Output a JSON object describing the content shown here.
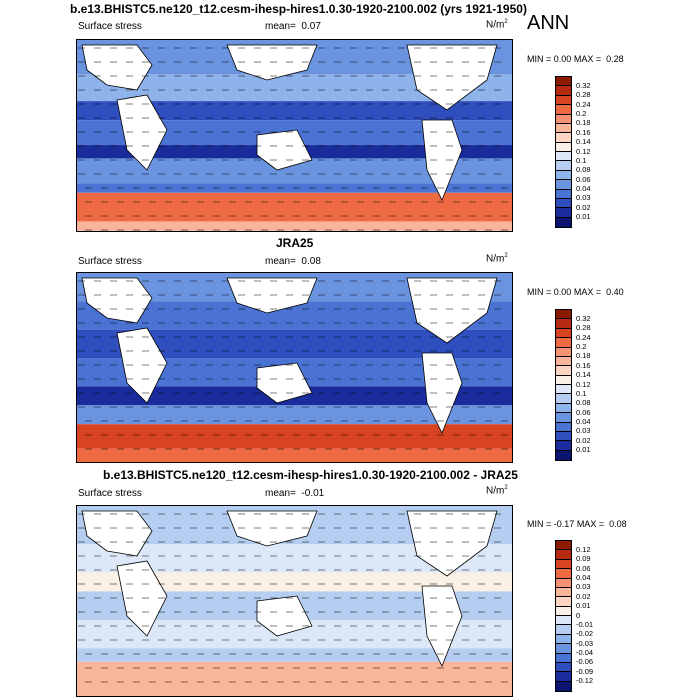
{
  "season": "ANN",
  "chart_data": [
    {
      "type": "heatmap",
      "title": "b.e13.BHISTC5.ne120_t12.cesm-ihesp-hires1.0.30-1920-2100.002 (yrs 1921-1950)",
      "left_label": "Surface stress",
      "mean_label": "mean=",
      "mean": "0.07",
      "units": "N/m",
      "units_sup": "2",
      "min_label": "MIN =",
      "min": "0.00",
      "max_label": "MAX =",
      "max": "0.28",
      "colorbar_levels": [
        "0.32",
        "0.28",
        "0.24",
        "0.2",
        "0.18",
        "0.16",
        "0.14",
        "0.12",
        "0.1",
        "0.08",
        "0.06",
        "0.04",
        "0.03",
        "0.02",
        "0.01"
      ],
      "colorbar_colors": [
        "#8b1a00",
        "#b52a10",
        "#d84422",
        "#ee6a43",
        "#f59272",
        "#f8b59a",
        "#fbd5c2",
        "#faf0e6",
        "#dce8f7",
        "#b4cdf0",
        "#8eb2ea",
        "#6a93e0",
        "#4a73d4",
        "#2f4fbf",
        "#1a2c9c",
        "#0c1470"
      ]
    },
    {
      "type": "heatmap",
      "title": "JRA25",
      "left_label": "Surface stress",
      "mean_label": "mean=",
      "mean": "0.08",
      "units": "N/m",
      "units_sup": "2",
      "min_label": "MIN =",
      "min": "0.00",
      "max_label": "MAX =",
      "max": "0.40",
      "colorbar_levels": [
        "0.32",
        "0.28",
        "0.24",
        "0.2",
        "0.18",
        "0.16",
        "0.14",
        "0.12",
        "0.1",
        "0.08",
        "0.06",
        "0.04",
        "0.03",
        "0.02",
        "0.01"
      ],
      "colorbar_colors": [
        "#8b1a00",
        "#b52a10",
        "#d84422",
        "#ee6a43",
        "#f59272",
        "#f8b59a",
        "#fbd5c2",
        "#faf0e6",
        "#dce8f7",
        "#b4cdf0",
        "#8eb2ea",
        "#6a93e0",
        "#4a73d4",
        "#2f4fbf",
        "#1a2c9c",
        "#0c1470"
      ]
    },
    {
      "type": "heatmap",
      "title": "b.e13.BHISTC5.ne120_t12.cesm-ihesp-hires1.0.30-1920-2100.002 - JRA25",
      "left_label": "Surface stress",
      "mean_label": "mean=",
      "mean": "-0.01",
      "units": "N/m",
      "units_sup": "2",
      "min_label": "MIN =",
      "min": "-0.17",
      "max_label": "MAX =",
      "max": "0.08",
      "colorbar_levels": [
        "0.12",
        "0.09",
        "0.06",
        "0.04",
        "0.03",
        "0.02",
        "0.01",
        "0",
        "-0.01",
        "-0.02",
        "-0.03",
        "-0.04",
        "-0.06",
        "-0.09",
        "-0.12"
      ],
      "colorbar_colors": [
        "#8b1a00",
        "#b52a10",
        "#d84422",
        "#ee6a43",
        "#f59272",
        "#f8b59a",
        "#fbd5c2",
        "#faf0e6",
        "#dce8f7",
        "#b4cdf0",
        "#8eb2ea",
        "#6a93e0",
        "#4a73d4",
        "#2f4fbf",
        "#1a2c9c",
        "#0c1470"
      ]
    }
  ]
}
